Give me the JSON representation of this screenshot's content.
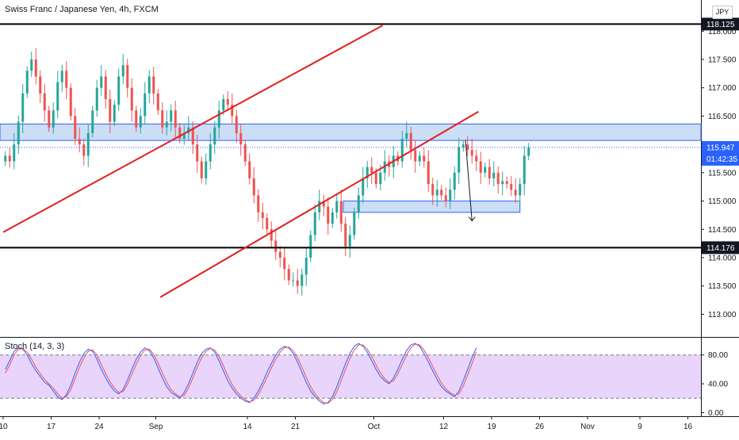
{
  "header": {
    "title": "Swiss Franc / Japanese Yen, 4h, FXCM",
    "currency_button": "JPY",
    "indicator_title": "Stoch (14, 3, 3)"
  },
  "chart_data": [
    {
      "type": "candlestick",
      "title": "Swiss Franc / Japanese Yen, 4h, FXCM",
      "y_ticks": [
        "113.000",
        "113.500",
        "114.000",
        "114.500",
        "115.000",
        "115.500",
        "116.000",
        "116.500",
        "117.000",
        "117.500",
        "118.000"
      ],
      "ylim": [
        112.6,
        118.55
      ],
      "x_ticks": [
        {
          "label": "10",
          "index": 0
        },
        {
          "label": "17",
          "index": 11
        },
        {
          "label": "24",
          "index": 22
        },
        {
          "label": "Sep",
          "index": 35
        },
        {
          "label": "14",
          "index": 56
        },
        {
          "label": "21",
          "index": 67
        },
        {
          "label": "Oct",
          "index": 85
        },
        {
          "label": "12",
          "index": 101
        },
        {
          "label": "19",
          "index": 112
        },
        {
          "label": "26",
          "index": 123
        },
        {
          "label": "Nov",
          "index": 134
        },
        {
          "label": "9",
          "index": 146
        },
        {
          "label": "16",
          "index": 157
        }
      ],
      "x_count": 160,
      "closes": [
        115.8,
        115.7,
        116.0,
        116.4,
        116.9,
        117.3,
        117.5,
        117.2,
        116.9,
        116.6,
        116.3,
        116.6,
        117.1,
        117.3,
        117.0,
        116.5,
        116.1,
        116.0,
        115.8,
        116.2,
        116.6,
        117.0,
        117.2,
        116.8,
        116.4,
        116.7,
        117.2,
        117.4,
        117.0,
        116.6,
        116.3,
        116.5,
        116.9,
        117.2,
        116.9,
        116.6,
        116.3,
        116.4,
        116.6,
        116.3,
        116.1,
        116.2,
        116.3,
        116.0,
        115.7,
        115.4,
        115.7,
        116.0,
        116.3,
        116.6,
        116.8,
        116.7,
        116.5,
        116.2,
        116.0,
        115.7,
        115.4,
        115.1,
        114.8,
        114.7,
        114.5,
        114.3,
        114.1,
        114.0,
        113.8,
        113.6,
        113.6,
        113.5,
        113.7,
        114.0,
        114.4,
        114.8,
        115.0,
        114.9,
        114.6,
        114.8,
        115.0,
        114.6,
        114.2,
        114.4,
        114.8,
        115.1,
        115.4,
        115.6,
        115.5,
        115.3,
        115.5,
        115.7,
        115.6,
        115.8,
        115.7,
        116.1,
        116.2,
        115.9,
        115.7,
        115.8,
        115.7,
        115.3,
        115.1,
        115.2,
        115.1,
        115.0,
        115.2,
        115.5,
        115.95,
        116.0,
        115.9,
        115.8,
        115.7,
        115.5,
        115.6,
        115.4,
        115.5,
        115.3,
        115.35,
        115.3,
        115.2,
        115.1,
        115.3,
        115.8,
        115.947
      ],
      "current_price": "115.947",
      "countdown": "01:42:35",
      "horizontal_levels": [
        {
          "label": "118.125",
          "value": 118.125
        },
        {
          "label": "114.176",
          "value": 114.176
        }
      ],
      "zones": [
        {
          "top": 116.36,
          "bottom": 116.07
        },
        {
          "top": 115.0,
          "bottom": 114.8
        }
      ],
      "trendlines": [
        {
          "from": [
            0,
            114.45
          ],
          "to": [
            87,
            118.1
          ]
        },
        {
          "from": [
            36,
            113.3
          ],
          "to": [
            109,
            116.58
          ]
        }
      ],
      "projection": {
        "from": [
          106,
          116.08
        ],
        "to": [
          107.5,
          114.65
        ]
      },
      "colors": {
        "up": "#26a69a",
        "down": "#ef5350",
        "zone_fill": "#bbd3f3",
        "zone_border": "#2962ff",
        "trendline": "#e3201b",
        "level": "#000000",
        "price_label": "#2962ff"
      }
    },
    {
      "type": "line",
      "title": "Stoch (14, 3, 3)",
      "y_ticks": [
        "80.00",
        "40.00",
        "0.00"
      ],
      "ylim": [
        -5,
        105
      ],
      "band": [
        20,
        80
      ],
      "series": [
        {
          "color": "#2962ff",
          "values": [
            60,
            72,
            85,
            90,
            88,
            80,
            68,
            58,
            50,
            42,
            38,
            30,
            22,
            18,
            25,
            38,
            55,
            70,
            82,
            88,
            85,
            74,
            60,
            48,
            38,
            30,
            26,
            32,
            45,
            60,
            74,
            84,
            90,
            86,
            76,
            62,
            48,
            36,
            28,
            24,
            20,
            28,
            40,
            55,
            70,
            82,
            88,
            90,
            84,
            72,
            58,
            44,
            34,
            26,
            20,
            16,
            14,
            20,
            30,
            42,
            56,
            68,
            80,
            88,
            92,
            90,
            82,
            70,
            56,
            42,
            30,
            22,
            16,
            12,
            14,
            22,
            36,
            52,
            68,
            82,
            92,
            96,
            92,
            84,
            72,
            60,
            50,
            44,
            40,
            48,
            60,
            74,
            86,
            94,
            96,
            92,
            82,
            70,
            58,
            46,
            36,
            30,
            26,
            22,
            30,
            44,
            60,
            76,
            90
          ]
        },
        {
          "color": "#ef5350",
          "values": [
            55,
            66,
            80,
            88,
            89,
            84,
            74,
            63,
            54,
            46,
            40,
            34,
            26,
            20,
            22,
            32,
            47,
            63,
            76,
            85,
            87,
            80,
            67,
            54,
            43,
            34,
            28,
            29,
            39,
            53,
            67,
            79,
            87,
            88,
            81,
            69,
            55,
            42,
            32,
            26,
            22,
            24,
            34,
            48,
            63,
            76,
            85,
            89,
            87,
            78,
            65,
            51,
            39,
            30,
            23,
            18,
            15,
            17,
            25,
            36,
            49,
            62,
            74,
            84,
            90,
            91,
            86,
            76,
            63,
            49,
            36,
            26,
            19,
            14,
            13,
            18,
            29,
            44,
            60,
            75,
            87,
            94,
            94,
            88,
            78,
            66,
            55,
            47,
            42,
            44,
            54,
            67,
            80,
            90,
            95,
            94,
            87,
            76,
            64,
            52,
            41,
            33,
            28,
            24,
            26,
            37,
            52,
            68,
            84
          ]
        }
      ]
    }
  ]
}
